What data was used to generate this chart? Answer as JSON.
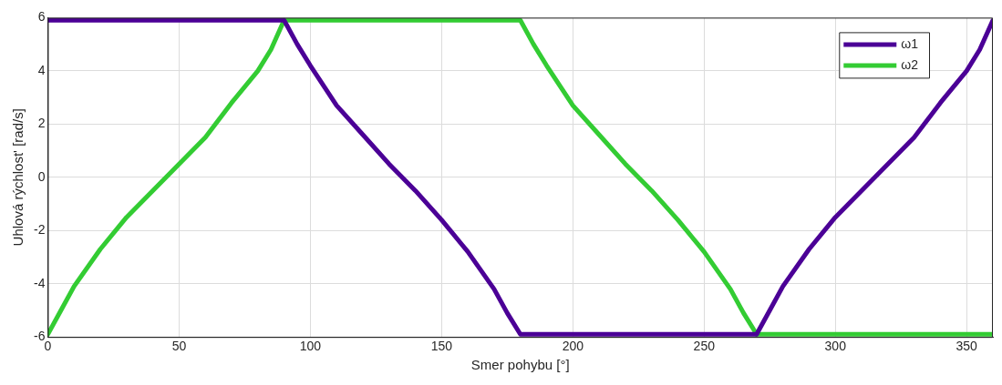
{
  "chart_data": {
    "type": "line",
    "xlabel": "Smer pohybu [°]",
    "ylabel": "Uhlová rýchlost' [rad/s]",
    "xlim": [
      0,
      360
    ],
    "xticks": [
      0,
      50,
      100,
      150,
      200,
      250,
      300,
      350
    ],
    "ylim": [
      -6,
      6
    ],
    "yticks": [
      -6,
      -4,
      -2,
      0,
      2,
      4,
      6
    ],
    "grid": true,
    "legend": "top right",
    "marker": "none",
    "line_style": "solid",
    "series": [
      {
        "name": "ω1",
        "color": "#4b0096",
        "x": [
          0,
          90,
          95,
          100,
          110,
          120,
          130,
          140,
          150,
          160,
          170,
          175,
          180,
          270,
          275,
          280,
          290,
          300,
          310,
          320,
          330,
          340,
          350,
          355,
          360
        ],
        "values": [
          5.9,
          5.9,
          5.0,
          4.2,
          2.7,
          1.6,
          0.5,
          -0.5,
          -1.6,
          -2.8,
          -4.2,
          -5.1,
          -5.9,
          -5.9,
          -5.0,
          -4.1,
          -2.7,
          -1.5,
          -0.5,
          0.5,
          1.5,
          2.8,
          4.0,
          4.8,
          5.9
        ]
      },
      {
        "name": "ω2",
        "color": "#33cc33",
        "x": [
          0,
          5,
          10,
          20,
          30,
          40,
          50,
          60,
          70,
          80,
          85,
          90,
          180,
          185,
          190,
          200,
          210,
          220,
          230,
          240,
          250,
          260,
          265,
          270,
          360
        ],
        "values": [
          -5.9,
          -5.0,
          -4.1,
          -2.7,
          -1.5,
          -0.5,
          0.5,
          1.5,
          2.8,
          4.0,
          4.8,
          5.9,
          5.9,
          5.0,
          4.2,
          2.7,
          1.6,
          0.5,
          -0.5,
          -1.6,
          -2.8,
          -4.2,
          -5.1,
          -5.9,
          -5.9
        ]
      }
    ]
  }
}
